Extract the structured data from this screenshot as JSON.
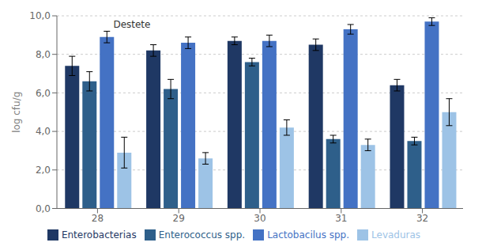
{
  "chart_data": {
    "type": "bar",
    "categories": [
      "28",
      "29",
      "30",
      "31",
      "32"
    ],
    "series": [
      {
        "name": "Enterobacterias",
        "color": "#1f3864",
        "values": [
          7.4,
          8.2,
          8.7,
          8.5,
          6.4
        ],
        "errors": [
          0.5,
          0.3,
          0.2,
          0.3,
          0.3
        ]
      },
      {
        "name": "Enterococcus spp.",
        "color": "#2e5f8a",
        "values": [
          6.6,
          6.2,
          7.6,
          3.6,
          3.5
        ],
        "errors": [
          0.5,
          0.5,
          0.2,
          0.2,
          0.2
        ]
      },
      {
        "name": "Lactobacilus spp.",
        "color": "#4472c4",
        "values": [
          8.9,
          8.6,
          8.7,
          9.3,
          9.7
        ],
        "errors": [
          0.3,
          0.3,
          0.3,
          0.25,
          0.2
        ]
      },
      {
        "name": "Levaduras",
        "color": "#9dc3e6",
        "values": [
          2.9,
          2.6,
          4.2,
          3.3,
          5.0
        ],
        "errors": [
          0.8,
          0.3,
          0.4,
          0.3,
          0.7
        ]
      }
    ],
    "ylabel": "log cfu/g",
    "ylim": [
      0,
      10
    ],
    "yticks": [
      {
        "value": 0.0,
        "label": "0,0"
      },
      {
        "value": 2.0,
        "label": "2,0"
      },
      {
        "value": 4.0,
        "label": "4,0"
      },
      {
        "value": 6.0,
        "label": "6,0"
      },
      {
        "value": 8.0,
        "label": "8,0"
      },
      {
        "value": 10.0,
        "label": "10,0"
      }
    ],
    "annotations": [
      {
        "text": "Destete",
        "x": "28",
        "y": 9.25
      }
    ],
    "grid": true,
    "legend": "bottom"
  }
}
